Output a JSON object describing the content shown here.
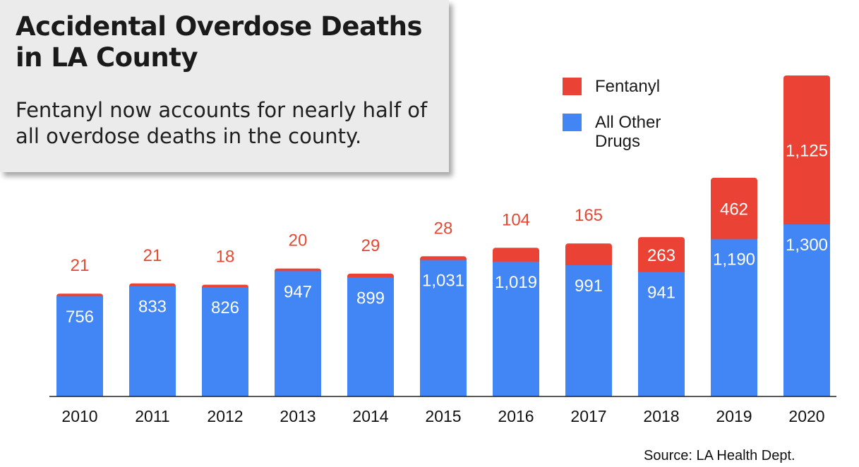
{
  "chart_data": {
    "type": "bar",
    "stacked": true,
    "title": "Accidental Overdose Deaths in LA County",
    "subtitle": "Fentanyl now accounts for nearly half of all overdose deaths in the county.",
    "categories": [
      "2010",
      "2011",
      "2012",
      "2013",
      "2014",
      "2015",
      "2016",
      "2017",
      "2018",
      "2019",
      "2020"
    ],
    "series": [
      {
        "name": "All Other Drugs",
        "color": "#4285f4",
        "values": [
          756,
          833,
          826,
          947,
          899,
          1031,
          1019,
          991,
          941,
          1190,
          1300
        ]
      },
      {
        "name": "Fentanyl",
        "color": "#ea4335",
        "values": [
          21,
          21,
          18,
          20,
          29,
          28,
          104,
          165,
          263,
          462,
          1125
        ]
      }
    ],
    "data_labels": {
      "All Other Drugs": [
        "756",
        "833",
        "826",
        "947",
        "899",
        "1,031",
        "1,019",
        "991",
        "941",
        "1,190",
        "1,300"
      ],
      "Fentanyl": [
        "21",
        "21",
        "18",
        "20",
        "29",
        "28",
        "104",
        "165",
        "263",
        "462",
        "1,125"
      ]
    },
    "ylim": [
      0,
      2425
    ],
    "grid": false,
    "legend_position": "top-right",
    "legend_labels": [
      "Fentanyl",
      "All Other Drugs"
    ],
    "source": "Source: LA Health Dept."
  }
}
